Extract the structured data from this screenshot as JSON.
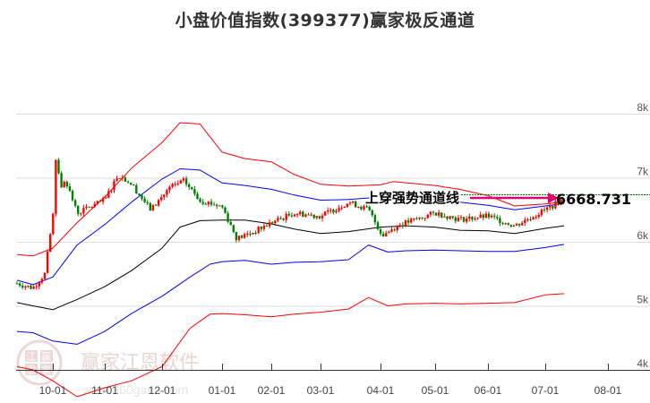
{
  "title": "小盘价值指数(399377)赢家极反通道",
  "watermark": {
    "name": "赢家江恩软件",
    "url": "www.360gann.com",
    "seal": [
      "江",
      "赢",
      "恩",
      "家"
    ]
  },
  "annotation": {
    "label": "上穿强势通道线",
    "value": "6668.731"
  },
  "colors": {
    "up": "#ff0000",
    "down": "#008000",
    "outer_band": "#ff0000",
    "inner_band": "#0000ff",
    "mid_line": "#000000",
    "arrow": "#e0006f",
    "last_line": "#008000",
    "grid": "#dddddd"
  },
  "chart_data": {
    "type": "candlestick",
    "title": "小盘价值指数(399377)赢家极反通道",
    "xlabel": "",
    "ylabel": "",
    "ylim": [
      4000,
      8000
    ],
    "y_ticks": [
      "8k",
      "7k",
      "6k",
      "5k",
      "4k"
    ],
    "x_ticks": [
      "10-01",
      "11-01",
      "12-01",
      "01-01",
      "02-01",
      "03-01",
      "04-01",
      "05-01",
      "06-01",
      "07-01",
      "08-01"
    ],
    "grid": true,
    "last_value": 6668.731,
    "annotation": "上穿强势通道线",
    "series": [
      {
        "name": "outer_upper",
        "color": "red",
        "points": [
          [
            "09-12",
            5800
          ],
          [
            "09-20",
            5780
          ],
          [
            "10-01",
            5900
          ],
          [
            "10-15",
            6300
          ],
          [
            "11-01",
            6700
          ],
          [
            "11-15",
            7150
          ],
          [
            "12-01",
            7550
          ],
          [
            "12-10",
            7860
          ],
          [
            "12-20",
            7840
          ],
          [
            "01-01",
            7400
          ],
          [
            "01-15",
            7300
          ],
          [
            "02-01",
            7250
          ],
          [
            "02-15",
            7050
          ],
          [
            "03-01",
            6900
          ],
          [
            "03-15",
            6870
          ],
          [
            "04-01",
            6890
          ],
          [
            "04-08",
            6940
          ],
          [
            "05-01",
            6880
          ],
          [
            "05-15",
            6820
          ],
          [
            "06-01",
            6720
          ],
          [
            "06-15",
            6560
          ],
          [
            "07-01",
            6590
          ],
          [
            "07-10",
            6630
          ]
        ]
      },
      {
        "name": "inner_upper",
        "color": "blue",
        "points": [
          [
            "09-12",
            5400
          ],
          [
            "09-20",
            5330
          ],
          [
            "10-01",
            5450
          ],
          [
            "10-15",
            5950
          ],
          [
            "11-01",
            6270
          ],
          [
            "11-15",
            6620
          ],
          [
            "12-01",
            6980
          ],
          [
            "12-10",
            7140
          ],
          [
            "12-20",
            7120
          ],
          [
            "01-01",
            6920
          ],
          [
            "01-15",
            6880
          ],
          [
            "02-01",
            6820
          ],
          [
            "02-15",
            6730
          ],
          [
            "03-01",
            6650
          ],
          [
            "03-15",
            6660
          ],
          [
            "04-01",
            6700
          ],
          [
            "04-15",
            6690
          ],
          [
            "05-01",
            6660
          ],
          [
            "05-15",
            6620
          ],
          [
            "06-01",
            6570
          ],
          [
            "06-15",
            6500
          ],
          [
            "07-01",
            6560
          ],
          [
            "07-10",
            6600
          ]
        ]
      },
      {
        "name": "mid",
        "color": "black",
        "points": [
          [
            "09-12",
            5050
          ],
          [
            "09-20",
            5000
          ],
          [
            "10-01",
            4940
          ],
          [
            "10-15",
            5100
          ],
          [
            "11-01",
            5300
          ],
          [
            "11-15",
            5550
          ],
          [
            "12-01",
            5900
          ],
          [
            "12-10",
            6230
          ],
          [
            "12-20",
            6330
          ],
          [
            "01-01",
            6340
          ],
          [
            "01-15",
            6340
          ],
          [
            "02-01",
            6280
          ],
          [
            "02-15",
            6200
          ],
          [
            "03-01",
            6130
          ],
          [
            "03-15",
            6160
          ],
          [
            "04-01",
            6230
          ],
          [
            "04-15",
            6250
          ],
          [
            "05-01",
            6230
          ],
          [
            "05-15",
            6180
          ],
          [
            "06-01",
            6170
          ],
          [
            "06-15",
            6130
          ],
          [
            "07-01",
            6210
          ],
          [
            "07-10",
            6250
          ]
        ]
      },
      {
        "name": "inner_lower",
        "color": "blue",
        "points": [
          [
            "09-12",
            4600
          ],
          [
            "09-20",
            4580
          ],
          [
            "10-01",
            4450
          ],
          [
            "10-15",
            4400
          ],
          [
            "11-01",
            4600
          ],
          [
            "11-15",
            4880
          ],
          [
            "12-01",
            5150
          ],
          [
            "12-15",
            5450
          ],
          [
            "12-25",
            5650
          ],
          [
            "01-01",
            5690
          ],
          [
            "01-15",
            5710
          ],
          [
            "02-01",
            5650
          ],
          [
            "02-15",
            5680
          ],
          [
            "03-01",
            5690
          ],
          [
            "03-15",
            5720
          ],
          [
            "03-25",
            5950
          ],
          [
            "04-05",
            5840
          ],
          [
            "04-15",
            5860
          ],
          [
            "05-01",
            5870
          ],
          [
            "05-15",
            5860
          ],
          [
            "06-01",
            5850
          ],
          [
            "06-15",
            5850
          ],
          [
            "07-01",
            5910
          ],
          [
            "07-10",
            5960
          ]
        ]
      },
      {
        "name": "outer_lower",
        "color": "red",
        "points": [
          [
            "09-12",
            4050
          ],
          [
            "09-20",
            4000
          ],
          [
            "10-01",
            3830
          ],
          [
            "10-15",
            3580
          ],
          [
            "11-01",
            3720
          ],
          [
            "11-15",
            3830
          ],
          [
            "12-01",
            4050
          ],
          [
            "12-15",
            4650
          ],
          [
            "12-25",
            4870
          ],
          [
            "01-01",
            4880
          ],
          [
            "01-15",
            4860
          ],
          [
            "02-01",
            4830
          ],
          [
            "02-15",
            4870
          ],
          [
            "03-01",
            4900
          ],
          [
            "03-15",
            4950
          ],
          [
            "03-25",
            5130
          ],
          [
            "04-05",
            5000
          ],
          [
            "04-15",
            5030
          ],
          [
            "05-01",
            5040
          ],
          [
            "05-15",
            5030
          ],
          [
            "06-01",
            5040
          ],
          [
            "06-15",
            5050
          ],
          [
            "07-01",
            5170
          ],
          [
            "07-10",
            5190
          ]
        ]
      },
      {
        "name": "close",
        "color": "mixed",
        "points": [
          [
            "09-12",
            5350
          ],
          [
            "09-20",
            5280
          ],
          [
            "09-26",
            5500
          ],
          [
            "09-30",
            6400
          ],
          [
            "10-08",
            7000
          ],
          [
            "10-15",
            6450
          ],
          [
            "11-01",
            6650
          ],
          [
            "11-08",
            7050
          ],
          [
            "11-15",
            6900
          ],
          [
            "11-25",
            6500
          ],
          [
            "12-05",
            6850
          ],
          [
            "12-12",
            6950
          ],
          [
            "12-20",
            6650
          ],
          [
            "01-01",
            6550
          ],
          [
            "01-10",
            6050
          ],
          [
            "01-20",
            6150
          ],
          [
            "02-01",
            6300
          ],
          [
            "02-15",
            6450
          ],
          [
            "03-01",
            6400
          ],
          [
            "03-15",
            6620
          ],
          [
            "03-25",
            6500
          ],
          [
            "04-02",
            6100
          ],
          [
            "04-10",
            6250
          ],
          [
            "05-01",
            6450
          ],
          [
            "05-15",
            6350
          ],
          [
            "06-01",
            6400
          ],
          [
            "06-15",
            6250
          ],
          [
            "07-01",
            6500
          ],
          [
            "07-10",
            6668.731
          ]
        ]
      }
    ]
  }
}
